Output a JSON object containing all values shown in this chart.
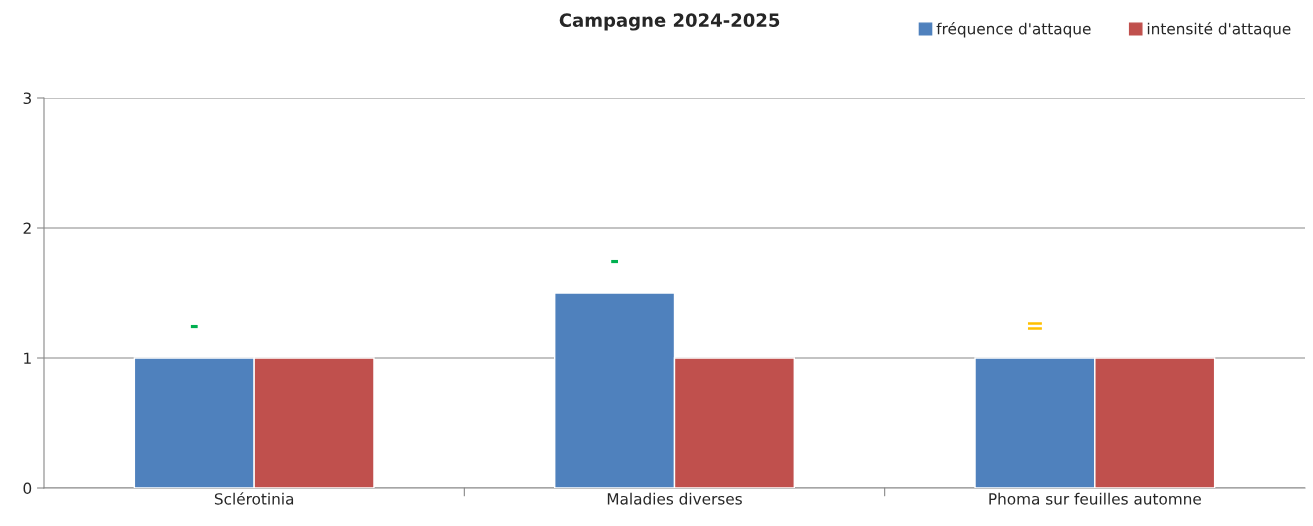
{
  "chart_data": {
    "type": "bar",
    "title": "Campagne 2024-2025",
    "categories": [
      "Sclérotinia",
      "Maladies diverses",
      "Phoma sur feuilles automne"
    ],
    "series": [
      {
        "name": "fréquence d'attaque",
        "color": "#4f81bd",
        "values": [
          1,
          1.5,
          1
        ]
      },
      {
        "name": "intensité d'attaque",
        "color": "#c0504d",
        "values": [
          1,
          1,
          1
        ]
      }
    ],
    "ylim": [
      0,
      3
    ],
    "yticks": [
      0,
      1,
      2,
      3
    ],
    "grid": "y",
    "legend": "top right",
    "annotations": [
      "-",
      "-",
      "="
    ]
  }
}
